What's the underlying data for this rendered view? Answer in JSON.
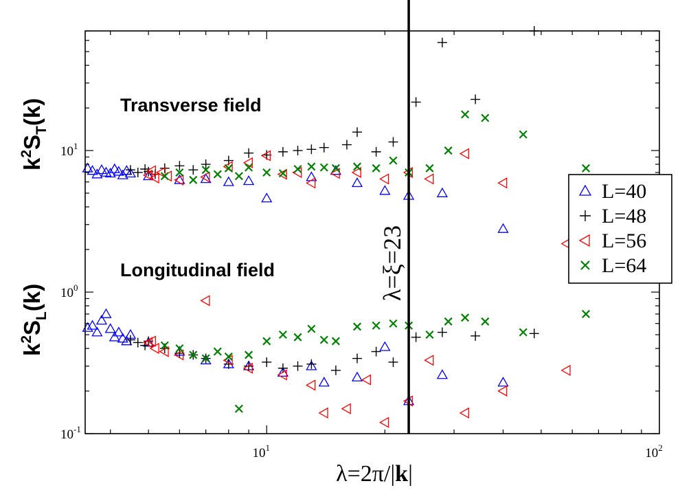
{
  "chart_data": {
    "type": "scatter",
    "title": "",
    "xlabel": {
      "prefix": "λ=2π/|",
      "bold": "k",
      "suffix": "|"
    },
    "ylabel_top": {
      "base": "k",
      "sup": "2",
      "S": "S",
      "sub": "T",
      "arg": "(k)"
    },
    "ylabel_bottom": {
      "base": "k",
      "sup": "2",
      "S": "S",
      "sub": "L",
      "arg": "(k)"
    },
    "x_scale": "log",
    "y_scale": "log",
    "xlim": [
      3.45,
      100
    ],
    "ylim": [
      0.1,
      70
    ],
    "x_ticks": [
      {
        "base": "10",
        "exp": "1",
        "value": 10
      },
      {
        "base": "10",
        "exp": "2",
        "value": 100
      }
    ],
    "y_ticks": [
      {
        "base": "10",
        "exp": "-1",
        "value": 0.1
      },
      {
        "base": "10",
        "exp": "0",
        "value": 1
      },
      {
        "base": "10",
        "exp": "1",
        "value": 10
      }
    ],
    "annotations": {
      "transverse": "Transverse field",
      "longitudinal": "Longitudinal field"
    },
    "vertical_line": {
      "x": 23,
      "label": "λ=ξ=23"
    },
    "legend_position": "right",
    "series": [
      {
        "name": "L=40",
        "marker": "triangle-up",
        "color": "#0000ff",
        "points": [
          [
            3.5,
            7.5
          ],
          [
            3.6,
            7.2
          ],
          [
            3.7,
            6.8
          ],
          [
            3.8,
            7.3
          ],
          [
            3.9,
            7.0
          ],
          [
            4.0,
            6.9
          ],
          [
            4.1,
            7.4
          ],
          [
            4.2,
            7.1
          ],
          [
            4.3,
            6.7
          ],
          [
            4.4,
            7.2
          ],
          [
            4.5,
            6.9
          ],
          [
            5.0,
            6.6
          ],
          [
            6.0,
            6.2
          ],
          [
            7.0,
            6.3
          ],
          [
            8.0,
            6.0
          ],
          [
            9.0,
            6.1
          ],
          [
            10.0,
            4.6
          ],
          [
            13.0,
            6.5
          ],
          [
            15.0,
            7.2
          ],
          [
            17.0,
            5.9
          ],
          [
            20.0,
            5.2
          ],
          [
            23.0,
            4.8
          ],
          [
            28.0,
            5.0
          ],
          [
            40.0,
            2.8
          ],
          [
            3.5,
            0.56
          ],
          [
            3.6,
            0.58
          ],
          [
            3.7,
            0.52
          ],
          [
            3.8,
            0.63
          ],
          [
            3.9,
            0.7
          ],
          [
            4.0,
            0.55
          ],
          [
            4.1,
            0.48
          ],
          [
            4.2,
            0.52
          ],
          [
            4.3,
            0.47
          ],
          [
            4.4,
            0.45
          ],
          [
            4.5,
            0.5
          ],
          [
            5.0,
            0.44
          ],
          [
            6.0,
            0.38
          ],
          [
            7.0,
            0.33
          ],
          [
            8.0,
            0.31
          ],
          [
            9.0,
            0.3
          ],
          [
            11.0,
            0.27
          ],
          [
            13.0,
            0.3
          ],
          [
            14.0,
            0.23
          ],
          [
            17.0,
            0.25
          ],
          [
            20.0,
            0.41
          ],
          [
            23.0,
            0.17
          ],
          [
            28.0,
            0.26
          ],
          [
            40.0,
            0.23
          ]
        ]
      },
      {
        "name": "L=48",
        "marker": "plus",
        "color": "#000000",
        "points": [
          [
            4.5,
            7.3
          ],
          [
            4.7,
            7.0
          ],
          [
            4.9,
            7.4
          ],
          [
            5.0,
            7.1
          ],
          [
            5.2,
            6.8
          ],
          [
            5.5,
            7.5
          ],
          [
            6.0,
            7.8
          ],
          [
            6.5,
            7.3
          ],
          [
            7.0,
            8.0
          ],
          [
            8.0,
            8.5
          ],
          [
            9.0,
            9.6
          ],
          [
            10.0,
            9.3
          ],
          [
            11.0,
            9.8
          ],
          [
            12.0,
            10.0
          ],
          [
            13.0,
            10.2
          ],
          [
            14.0,
            10.5
          ],
          [
            16.0,
            11.0
          ],
          [
            17.0,
            13.5
          ],
          [
            19.0,
            9.8
          ],
          [
            21.0,
            11.5
          ],
          [
            24.0,
            22.0
          ],
          [
            28.0,
            58.0
          ],
          [
            34.0,
            23.0
          ],
          [
            48.0,
            70.0
          ],
          [
            4.5,
            0.46
          ],
          [
            4.7,
            0.44
          ],
          [
            4.9,
            0.42
          ],
          [
            5.0,
            0.45
          ],
          [
            5.5,
            0.4
          ],
          [
            6.0,
            0.37
          ],
          [
            6.5,
            0.36
          ],
          [
            7.0,
            0.34
          ],
          [
            8.0,
            0.31
          ],
          [
            9.0,
            0.3
          ],
          [
            10.0,
            0.32
          ],
          [
            11.0,
            0.29
          ],
          [
            12.0,
            0.3
          ],
          [
            13.0,
            0.31
          ],
          [
            15.0,
            0.28
          ],
          [
            17.0,
            0.34
          ],
          [
            19.0,
            0.38
          ],
          [
            21.0,
            0.32
          ],
          [
            24.0,
            0.48
          ],
          [
            28.0,
            0.52
          ],
          [
            34.0,
            0.49
          ],
          [
            48.0,
            0.51
          ]
        ]
      },
      {
        "name": "L=56",
        "marker": "triangle-left",
        "color": "#ff0000",
        "points": [
          [
            5.0,
            6.7
          ],
          [
            5.1,
            7.2
          ],
          [
            5.2,
            6.4
          ],
          [
            5.4,
            7.0
          ],
          [
            5.6,
            6.6
          ],
          [
            6.0,
            6.2
          ],
          [
            7.0,
            6.5
          ],
          [
            8.0,
            7.7
          ],
          [
            9.0,
            8.2
          ],
          [
            10.0,
            9.2
          ],
          [
            11.0,
            6.8
          ],
          [
            12.0,
            7.0
          ],
          [
            13.0,
            5.9
          ],
          [
            15.0,
            6.9
          ],
          [
            17.0,
            7.0
          ],
          [
            20.0,
            6.3
          ],
          [
            23.0,
            7.0
          ],
          [
            26.0,
            6.3
          ],
          [
            32.0,
            9.5
          ],
          [
            40.0,
            5.9
          ],
          [
            58.0,
            2.2
          ],
          [
            5.0,
            0.44
          ],
          [
            5.1,
            0.45
          ],
          [
            5.2,
            0.4
          ],
          [
            5.5,
            0.38
          ],
          [
            6.0,
            0.36
          ],
          [
            7.0,
            0.87
          ],
          [
            8.0,
            0.33
          ],
          [
            9.0,
            0.29
          ],
          [
            11.0,
            0.26
          ],
          [
            13.0,
            0.22
          ],
          [
            14.0,
            0.14
          ],
          [
            16.0,
            0.15
          ],
          [
            18.0,
            0.24
          ],
          [
            20.0,
            0.12
          ],
          [
            23.0,
            0.17
          ],
          [
            26.0,
            0.33
          ],
          [
            32.0,
            0.14
          ],
          [
            40.0,
            0.2
          ],
          [
            58.0,
            0.28
          ]
        ]
      },
      {
        "name": "L=64",
        "marker": "x",
        "color": "#008000",
        "points": [
          [
            5.5,
            6.6
          ],
          [
            6.0,
            7.0
          ],
          [
            6.5,
            6.2
          ],
          [
            7.0,
            7.3
          ],
          [
            7.5,
            6.8
          ],
          [
            8.0,
            7.5
          ],
          [
            8.5,
            6.6
          ],
          [
            9.0,
            7.6
          ],
          [
            10.0,
            7.0
          ],
          [
            11.0,
            6.9
          ],
          [
            12.0,
            7.4
          ],
          [
            13.0,
            7.7
          ],
          [
            14.0,
            7.6
          ],
          [
            15.0,
            7.5
          ],
          [
            17.0,
            7.7
          ],
          [
            19.0,
            7.5
          ],
          [
            21.0,
            8.5
          ],
          [
            23.0,
            7.0
          ],
          [
            26.0,
            7.5
          ],
          [
            29.0,
            10.0
          ],
          [
            32.0,
            18.0
          ],
          [
            36.0,
            17.0
          ],
          [
            45.0,
            13.0
          ],
          [
            65.0,
            7.5
          ],
          [
            5.5,
            0.42
          ],
          [
            6.0,
            0.4
          ],
          [
            6.5,
            0.36
          ],
          [
            7.0,
            0.34
          ],
          [
            7.5,
            0.38
          ],
          [
            8.0,
            0.35
          ],
          [
            8.5,
            0.15
          ],
          [
            9.0,
            0.36
          ],
          [
            10.0,
            0.45
          ],
          [
            11.0,
            0.5
          ],
          [
            12.0,
            0.48
          ],
          [
            13.0,
            0.55
          ],
          [
            14.0,
            0.46
          ],
          [
            15.0,
            0.45
          ],
          [
            17.0,
            0.57
          ],
          [
            19.0,
            0.58
          ],
          [
            21.0,
            0.6
          ],
          [
            23.0,
            0.58
          ],
          [
            26.0,
            0.5
          ],
          [
            29.0,
            0.62
          ],
          [
            32.0,
            0.66
          ],
          [
            36.0,
            0.62
          ],
          [
            45.0,
            0.52
          ],
          [
            65.0,
            0.7
          ]
        ]
      }
    ]
  }
}
